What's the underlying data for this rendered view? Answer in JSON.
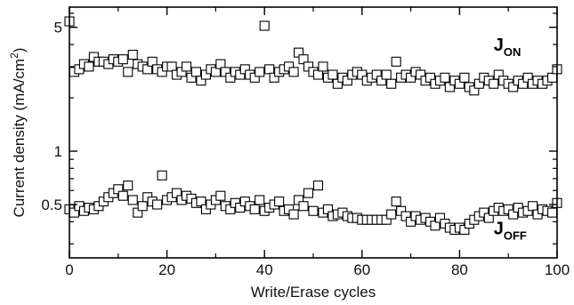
{
  "chart_data": {
    "type": "scatter",
    "title": "",
    "xlabel": "Write/Erase cycles",
    "ylabel": "Current density (mA/cm",
    "ylabel_sup": "2",
    "ylabel_close": ")",
    "xlim": [
      0,
      100
    ],
    "ylim": [
      0.25,
      6.5
    ],
    "yscale": "log",
    "grid": false,
    "x_ticks": [
      0,
      20,
      40,
      60,
      80,
      100
    ],
    "x_tick_labels": [
      "0",
      "20",
      "40",
      "60",
      "80",
      "100"
    ],
    "y_ticks": [
      0.5,
      1,
      5
    ],
    "y_tick_labels": [
      "0.5",
      "1",
      "5"
    ],
    "marker": "open-square",
    "series": [
      {
        "name": "J",
        "subscript": "ON",
        "x": [
          0,
          1,
          2,
          3,
          4,
          5,
          6,
          7,
          8,
          9,
          10,
          11,
          12,
          13,
          14,
          15,
          16,
          17,
          18,
          19,
          20,
          21,
          22,
          23,
          24,
          25,
          26,
          27,
          28,
          29,
          30,
          31,
          32,
          33,
          34,
          35,
          36,
          37,
          38,
          39,
          40,
          41,
          42,
          43,
          44,
          45,
          46,
          47,
          48,
          49,
          50,
          51,
          52,
          53,
          54,
          55,
          56,
          57,
          58,
          59,
          60,
          61,
          62,
          63,
          64,
          65,
          66,
          67,
          68,
          69,
          70,
          71,
          72,
          73,
          74,
          75,
          76,
          77,
          78,
          79,
          80,
          81,
          82,
          83,
          84,
          85,
          86,
          87,
          88,
          89,
          90,
          91,
          92,
          93,
          94,
          95,
          96,
          97,
          98,
          99,
          100
        ],
        "values": [
          5.4,
          2.8,
          2.9,
          3.1,
          3.0,
          3.4,
          3.2,
          3.2,
          3.1,
          3.3,
          3.2,
          3.3,
          2.8,
          3.5,
          3.1,
          3.0,
          2.9,
          3.2,
          2.9,
          2.8,
          3.0,
          3.0,
          2.7,
          2.8,
          3.0,
          2.6,
          2.8,
          2.5,
          2.7,
          2.9,
          2.8,
          3.1,
          2.8,
          2.6,
          2.8,
          2.7,
          2.9,
          2.7,
          2.6,
          2.8,
          5.1,
          2.9,
          2.6,
          2.8,
          2.9,
          3.0,
          2.8,
          3.6,
          3.3,
          3.0,
          2.8,
          2.7,
          3.0,
          2.6,
          2.7,
          2.4,
          2.6,
          2.5,
          2.7,
          2.8,
          2.7,
          2.5,
          2.6,
          2.7,
          2.5,
          2.7,
          2.4,
          3.2,
          2.6,
          2.7,
          2.6,
          2.8,
          2.7,
          2.5,
          2.6,
          2.4,
          2.5,
          2.6,
          2.3,
          2.5,
          2.4,
          2.6,
          2.3,
          2.2,
          2.4,
          2.6,
          2.5,
          2.4,
          2.7,
          2.5,
          2.4,
          2.3,
          2.5,
          2.4,
          2.6,
          2.4,
          2.5,
          2.4,
          2.5,
          2.6,
          2.9
        ]
      },
      {
        "name": "J",
        "subscript": "OFF",
        "x": [
          0,
          1,
          2,
          3,
          4,
          5,
          6,
          7,
          8,
          9,
          10,
          11,
          12,
          13,
          14,
          15,
          16,
          17,
          18,
          19,
          20,
          21,
          22,
          23,
          24,
          25,
          26,
          27,
          28,
          29,
          30,
          31,
          32,
          33,
          34,
          35,
          36,
          37,
          38,
          39,
          40,
          41,
          42,
          43,
          44,
          45,
          46,
          47,
          48,
          49,
          50,
          51,
          52,
          53,
          54,
          55,
          56,
          57,
          58,
          59,
          60,
          61,
          62,
          63,
          64,
          65,
          66,
          67,
          68,
          69,
          70,
          71,
          72,
          73,
          74,
          75,
          76,
          77,
          78,
          79,
          80,
          81,
          82,
          83,
          84,
          85,
          86,
          87,
          88,
          89,
          90,
          91,
          92,
          93,
          94,
          95,
          96,
          97,
          98,
          99,
          100
        ],
        "values": [
          0.47,
          0.45,
          0.49,
          0.46,
          0.48,
          0.47,
          0.49,
          0.52,
          0.55,
          0.58,
          0.61,
          0.56,
          0.64,
          0.53,
          0.45,
          0.49,
          0.55,
          0.52,
          0.5,
          0.73,
          0.53,
          0.55,
          0.58,
          0.53,
          0.56,
          0.54,
          0.51,
          0.52,
          0.47,
          0.5,
          0.53,
          0.56,
          0.49,
          0.47,
          0.51,
          0.48,
          0.52,
          0.49,
          0.47,
          0.53,
          0.46,
          0.48,
          0.5,
          0.52,
          0.46,
          0.47,
          0.44,
          0.53,
          0.49,
          0.58,
          0.46,
          0.64,
          0.45,
          0.47,
          0.43,
          0.44,
          0.45,
          0.43,
          0.42,
          0.42,
          0.41,
          0.41,
          0.41,
          0.41,
          0.41,
          0.41,
          0.44,
          0.52,
          0.46,
          0.43,
          0.4,
          0.43,
          0.41,
          0.42,
          0.4,
          0.38,
          0.42,
          0.39,
          0.37,
          0.36,
          0.37,
          0.36,
          0.39,
          0.41,
          0.43,
          0.45,
          0.42,
          0.46,
          0.48,
          0.46,
          0.47,
          0.44,
          0.48,
          0.45,
          0.46,
          0.49,
          0.44,
          0.47,
          0.46,
          0.45,
          0.51
        ]
      }
    ],
    "series_label_positions": [
      {
        "x": 87,
        "y": 3.7
      },
      {
        "x": 87,
        "y": 0.34
      }
    ]
  }
}
